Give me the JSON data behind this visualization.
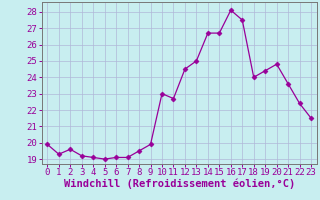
{
  "x": [
    0,
    1,
    2,
    3,
    4,
    5,
    6,
    7,
    8,
    9,
    10,
    11,
    12,
    13,
    14,
    15,
    16,
    17,
    18,
    19,
    20,
    21,
    22,
    23
  ],
  "y": [
    19.9,
    19.3,
    19.6,
    19.2,
    19.1,
    19.0,
    19.1,
    19.1,
    19.5,
    19.9,
    23.0,
    22.7,
    24.5,
    25.0,
    26.7,
    26.7,
    28.1,
    27.5,
    24.0,
    24.4,
    24.8,
    23.6,
    22.4,
    21.5
  ],
  "line_color": "#990099",
  "marker": "D",
  "marker_size": 2.5,
  "bg_color": "#c8eef0",
  "grid_color": "#b0b8d8",
  "xlabel": "Windchill (Refroidissement éolien,°C)",
  "xlabel_fontsize": 7.5,
  "ylim": [
    18.7,
    28.6
  ],
  "yticks": [
    19,
    20,
    21,
    22,
    23,
    24,
    25,
    26,
    27,
    28
  ],
  "xticks": [
    0,
    1,
    2,
    3,
    4,
    5,
    6,
    7,
    8,
    9,
    10,
    11,
    12,
    13,
    14,
    15,
    16,
    17,
    18,
    19,
    20,
    21,
    22,
    23
  ],
  "tick_fontsize": 6.5,
  "spine_color": "#777777"
}
